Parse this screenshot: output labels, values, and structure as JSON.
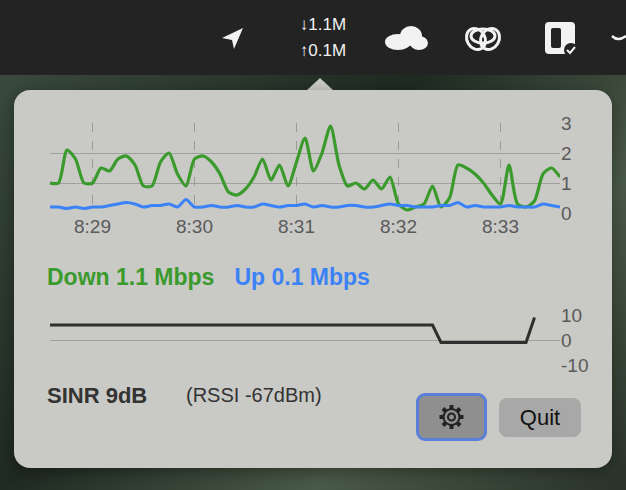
{
  "menu_bar": {
    "download": "↓1.1M",
    "upload": "↑0.1M"
  },
  "chart_data": [
    {
      "type": "line",
      "categories": [
        null,
        null,
        null,
        null,
        null,
        "8:29",
        null,
        null,
        null,
        null,
        null,
        null,
        null,
        null,
        null,
        null,
        null,
        "8:30",
        null,
        null,
        null,
        null,
        null,
        null,
        null,
        null,
        null,
        null,
        null,
        "8:31",
        null,
        null,
        null,
        null,
        null,
        null,
        null,
        null,
        null,
        null,
        null,
        "8:32",
        null,
        null,
        null,
        null,
        null,
        null,
        null,
        null,
        null,
        null,
        null,
        "8:33",
        null,
        null,
        null,
        null,
        null,
        null,
        null
      ],
      "series": [
        {
          "name": "Down 1.1 Mbps",
          "color": "#3b9a2c",
          "values": [
            1.0,
            1.0,
            2.1,
            1.8,
            1.0,
            1.0,
            1.5,
            1.4,
            1.8,
            1.9,
            1.6,
            0.9,
            0.9,
            1.7,
            2.0,
            1.3,
            0.9,
            1.8,
            1.9,
            1.7,
            1.3,
            0.7,
            0.6,
            0.8,
            1.2,
            1.8,
            1.1,
            1.6,
            0.9,
            1.7,
            2.5,
            1.4,
            2.0,
            2.9,
            1.6,
            0.9,
            1.0,
            0.8,
            1.1,
            0.8,
            1.2,
            0.3,
            0.1,
            0.2,
            0.3,
            0.9,
            0.2,
            0.5,
            1.6,
            1.5,
            1.3,
            1.0,
            0.6,
            0.3,
            1.6,
            0.3,
            0.2,
            0.4,
            1.3,
            1.5,
            1.2
          ]
        },
        {
          "name": "Up 0.1 Mbps",
          "color": "#3b82f6",
          "values": [
            0.2,
            0.2,
            0.15,
            0.2,
            0.15,
            0.2,
            0.2,
            0.25,
            0.3,
            0.35,
            0.3,
            0.2,
            0.25,
            0.25,
            0.3,
            0.2,
            0.45,
            0.2,
            0.2,
            0.25,
            0.2,
            0.2,
            0.25,
            0.2,
            0.2,
            0.3,
            0.25,
            0.2,
            0.25,
            0.25,
            0.3,
            0.2,
            0.25,
            0.2,
            0.2,
            0.25,
            0.25,
            0.2,
            0.2,
            0.25,
            0.3,
            0.25,
            0.25,
            0.2,
            0.2,
            0.2,
            0.25,
            0.25,
            0.35,
            0.2,
            0.25,
            0.2,
            0.2,
            0.2,
            0.25,
            0.2,
            0.2,
            0.2,
            0.3,
            0.25,
            0.2
          ]
        }
      ],
      "ylim": [
        0,
        3
      ],
      "yticks": [
        0,
        1,
        2,
        3
      ],
      "grid": true
    },
    {
      "type": "line",
      "categories": [
        null,
        null,
        null,
        null,
        null,
        null,
        null,
        null,
        null,
        null,
        null,
        null,
        null,
        null,
        null,
        null,
        null,
        null,
        null,
        null,
        null,
        null,
        null,
        null,
        null,
        null,
        null,
        null,
        null,
        null,
        null,
        null,
        null,
        null,
        null,
        null,
        null,
        null,
        null,
        null,
        null,
        null,
        null,
        null,
        null,
        null,
        null,
        null,
        null,
        null,
        null,
        null,
        null,
        null,
        null,
        null,
        null,
        null,
        null,
        null,
        null
      ],
      "values": [
        6,
        6,
        6,
        6,
        6,
        6,
        6,
        6,
        6,
        6,
        6,
        6,
        6,
        6,
        6,
        6,
        6,
        6,
        6,
        6,
        6,
        6,
        6,
        6,
        6,
        6,
        6,
        6,
        6,
        6,
        6,
        6,
        6,
        6,
        6,
        6,
        6,
        6,
        6,
        6,
        6,
        6,
        6,
        6,
        6,
        6,
        -1,
        -1,
        -1,
        -1,
        -1,
        -1,
        -1,
        -1,
        -1,
        -1,
        -1,
        9,
        null,
        null,
        null
      ],
      "color": "#2f2f2f",
      "ylim": [
        -10,
        10
      ],
      "yticks": [
        -10,
        0,
        10
      ],
      "grid": true,
      "tick_labels": "y"
    }
  ],
  "panel": {
    "sinr_label": "SINR 9dB",
    "rssi_label": "(RSSI -67dBm)",
    "quit_button": "Quit"
  }
}
